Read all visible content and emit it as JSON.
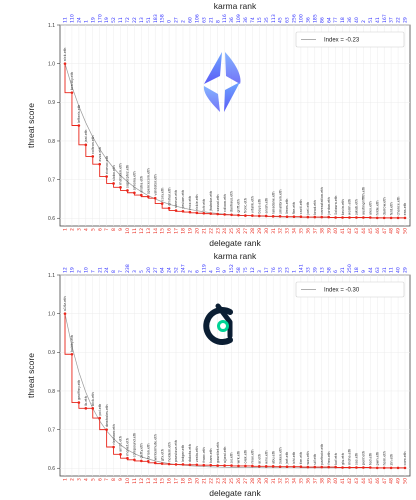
{
  "colors": {
    "top_rank": "#2b2bff",
    "bottom_rank": "#e8251a",
    "step_line": "#e8251a",
    "points": "#e8251a",
    "fit_line": "#9a9a9a",
    "grid": "#ececec",
    "ens_logo_top": "#6fa7ff",
    "ens_logo_bottom": "#5b5bf6",
    "comp_logo_dark": "#0b1e33",
    "comp_logo_accent": "#00d395"
  },
  "chart_data": [
    {
      "type": "step-scatter",
      "logo_icon": "ens-logo-icon",
      "xlabel": "delegate rank",
      "ylabel": "threat score",
      "top_axis_label": "karma rank",
      "legend": "Index = -0.23",
      "legend_position": "top-right",
      "ylim": [
        0.58,
        1.1
      ],
      "yticks": [
        "0.6",
        "0.7",
        "0.8",
        "0.9",
        "1.0",
        "1.1"
      ],
      "x": [
        1,
        2,
        3,
        4,
        5,
        6,
        7,
        8,
        9,
        10,
        11,
        12,
        13,
        14,
        15,
        16,
        17,
        18,
        19,
        20,
        21,
        22,
        23,
        24,
        25,
        26,
        27,
        28,
        29,
        30,
        31,
        32,
        33,
        34,
        35,
        36,
        37,
        38,
        39,
        40,
        41,
        42,
        43,
        44,
        45,
        46,
        47,
        48,
        49,
        50
      ],
      "y": [
        1.0,
        0.925,
        0.84,
        0.79,
        0.76,
        0.74,
        0.708,
        0.69,
        0.68,
        0.672,
        0.666,
        0.66,
        0.656,
        0.652,
        0.638,
        0.626,
        0.62,
        0.618,
        0.616,
        0.614,
        0.613,
        0.612,
        0.611,
        0.61,
        0.609,
        0.608,
        0.607,
        0.607,
        0.606,
        0.606,
        0.605,
        0.605,
        0.604,
        0.604,
        0.604,
        0.603,
        0.603,
        0.603,
        0.603,
        0.602,
        0.602,
        0.602,
        0.602,
        0.602,
        0.602,
        0.601,
        0.601,
        0.601,
        0.601,
        0.601
      ],
      "top_ranks": [
        "11",
        "110",
        "24",
        "1",
        "19",
        "170",
        "19",
        "52",
        "11",
        "72",
        "22",
        "13",
        "51",
        "183",
        "158",
        "0",
        "27",
        "2",
        "60",
        "106",
        "63",
        "21",
        "8",
        "116",
        "36",
        "109",
        "36",
        "74",
        "15",
        "35",
        "113",
        "45",
        "63",
        "256",
        "100",
        "36",
        "185",
        "86",
        "64",
        "77",
        "18",
        "36",
        "40",
        "2",
        "51",
        "41",
        "167",
        "37",
        "22",
        "29"
      ],
      "point_labels": [
        "nick.eth",
        "brantly.eth",
        "lefteris.eth",
        "jani.eth",
        "coltron.eth",
        "avsa.eth",
        "ricmoo.eth",
        "slobo.eth",
        "matoken.eth",
        "superphiz.eth",
        "simona.eth",
        "alisha.eth",
        "spencecoin.eth",
        "validator.eth",
        "cory.eth",
        "dmihal.eth",
        "steeve.eth",
        "yesiam.eth",
        "mcz.eth",
        "rickie.eth",
        "lcfr.eth",
        "jhuhnke.eth",
        "sassal.eth",
        "cdixon.eth",
        "daohaus.eth",
        "griff.eth",
        "frolic.eth",
        "vitalik.eth",
        "boys.eth",
        "anish.eth",
        "lanadane.eth",
        "smallbrain.eth",
        "limes.eth",
        "fire.eth",
        "cacti.eth",
        "joel.eth",
        "brad.eth",
        "ceresstation.eth",
        "jordan.eth",
        "0xlaura.eth",
        "kevin.eth",
        "worm.eth",
        "jakub.eth",
        "austingriffith.eth",
        "alex.eth",
        "hilde.eth",
        "darrow.eth",
        "feld.eth",
        "chance.eth",
        "ens.eth"
      ]
    },
    {
      "type": "step-scatter",
      "logo_icon": "compound-logo-icon",
      "xlabel": "delegate rank",
      "ylabel": "threat score",
      "top_axis_label": "karma rank",
      "legend": "Index = -0.30",
      "legend_position": "top-right",
      "ylim": [
        0.58,
        1.1
      ],
      "yticks": [
        "0.6",
        "0.7",
        "0.8",
        "0.9",
        "1.0",
        "1.1"
      ],
      "x": [
        1,
        2,
        3,
        4,
        5,
        6,
        7,
        8,
        9,
        10,
        11,
        12,
        13,
        14,
        15,
        16,
        17,
        18,
        19,
        20,
        21,
        22,
        23,
        24,
        25,
        26,
        27,
        28,
        29,
        30,
        31,
        32,
        33,
        34,
        35,
        36,
        37,
        38,
        39,
        40,
        41,
        42,
        43,
        44,
        45,
        46,
        47,
        48,
        49,
        50
      ],
      "y": [
        1.0,
        0.895,
        0.77,
        0.755,
        0.755,
        0.73,
        0.7,
        0.655,
        0.636,
        0.626,
        0.622,
        0.619,
        0.618,
        0.614,
        0.612,
        0.611,
        0.61,
        0.61,
        0.609,
        0.609,
        0.608,
        0.608,
        0.607,
        0.607,
        0.607,
        0.606,
        0.606,
        0.606,
        0.605,
        0.605,
        0.605,
        0.604,
        0.604,
        0.604,
        0.604,
        0.603,
        0.603,
        0.603,
        0.603,
        0.603,
        0.602,
        0.602,
        0.602,
        0.602,
        0.602,
        0.601,
        0.601,
        0.601,
        0.601,
        0.601
      ],
      "top_ranks": [
        "12",
        "19",
        "2",
        "10",
        "7",
        "21",
        "24",
        "8",
        "7",
        "238",
        "3",
        "5",
        "20",
        "27",
        "64",
        "24",
        "52",
        "247",
        "2",
        "6",
        "119",
        "4",
        "10",
        "9",
        "152",
        "58",
        "75",
        "12",
        "3",
        "17",
        "76",
        "33",
        "23",
        "1",
        "141",
        "33",
        "39",
        "13",
        "58",
        "6",
        "21",
        "250",
        "18",
        "9",
        "44",
        "63",
        "31",
        "11",
        "40",
        "29"
      ],
      "point_labels": [
        "a16z.eth",
        "bobby.eth",
        "geoffrey.eth",
        "lb.eth",
        "blck.eth",
        "pol.eth",
        "dewhales.eth",
        "rleshner.eth",
        "arr00.eth",
        "monet.eth",
        "compound.eth",
        "getty.eth",
        "brian.eth",
        "wintermute.eth",
        "gfx.eth",
        "holdem.eth",
        "pwrslave.eth",
        "ledger.eth",
        "dakota.eth",
        "vesta.eth",
        "franc.eth",
        "bam.eth",
        "gauntlet.eth",
        "ujjwal.eth",
        "jvj.eth",
        "wrk.eth",
        "olek.eth",
        "max.eth",
        "ar.eth",
        "wlix.eth",
        "abu.eth",
        "0xken.eth",
        "jnrt.eth",
        "ichi.eth",
        "tim.eth",
        "wav.eth",
        "ulf.eth",
        "parfnoie.eth",
        "frex.eth",
        "kof.eth",
        "glu.eth",
        "moha.eth",
        "sas.eth",
        "penf.eth",
        "ted.eth",
        "pwn.eth",
        "hom.eth",
        "zin.eth",
        "",
        "com.eth"
      ]
    }
  ]
}
